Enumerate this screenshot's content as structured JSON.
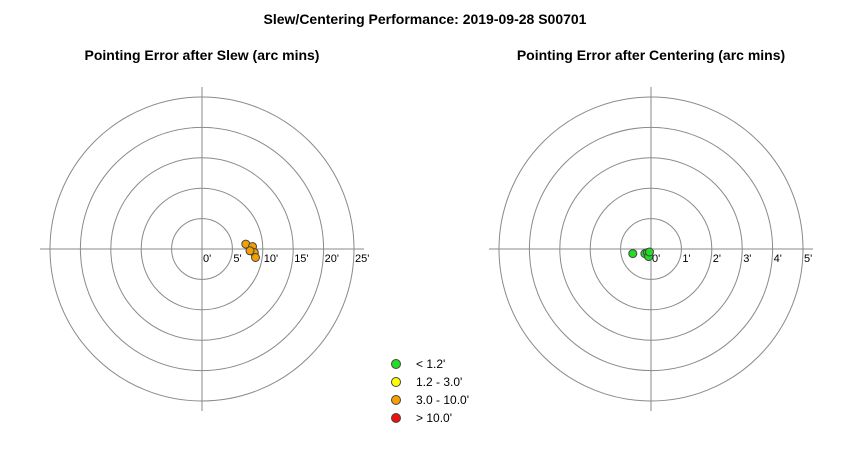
{
  "title": "Slew/Centering Performance: 2019-09-28 S00701",
  "chart_data": [
    {
      "type": "scatter",
      "subtype": "polar",
      "title": "Pointing Error after Slew (arc mins)",
      "ring_labels": [
        "0'",
        "5'",
        "10'",
        "15'",
        "20'",
        "25'"
      ],
      "rmax": 25,
      "points": [
        {
          "x": 7.2,
          "y": 0.8,
          "category": "3.0 - 10.0'"
        },
        {
          "x": 8.3,
          "y": 0.4,
          "category": "3.0 - 10.0'"
        },
        {
          "x": 8.6,
          "y": -0.6,
          "category": "3.0 - 10.0'"
        },
        {
          "x": 7.9,
          "y": -0.3,
          "category": "3.0 - 10.0'"
        },
        {
          "x": 8.8,
          "y": -1.4,
          "category": "3.0 - 10.0'"
        }
      ]
    },
    {
      "type": "scatter",
      "subtype": "polar",
      "title": "Pointing Error after Centering (arc mins)",
      "ring_labels": [
        "0'",
        "1'",
        "2'",
        "3'",
        "4'",
        "5'"
      ],
      "rmax": 5,
      "points": [
        {
          "x": -0.6,
          "y": -0.15,
          "category": "< 1.2'"
        },
        {
          "x": -0.2,
          "y": -0.15,
          "category": "< 1.2'"
        },
        {
          "x": -0.12,
          "y": -0.12,
          "category": "< 1.2'"
        },
        {
          "x": -0.08,
          "y": -0.25,
          "category": "< 1.2'"
        },
        {
          "x": -0.05,
          "y": -0.1,
          "category": "< 1.2'"
        }
      ]
    }
  ],
  "legend": [
    {
      "label": "< 1.2'",
      "color": "#22dd22"
    },
    {
      "label": "1.2 - 3.0'",
      "color": "#ffff00"
    },
    {
      "label": "3.0 - 10.0'",
      "color": "#f5a000"
    },
    {
      "label": "> 10.0'",
      "color": "#ee1111"
    }
  ]
}
